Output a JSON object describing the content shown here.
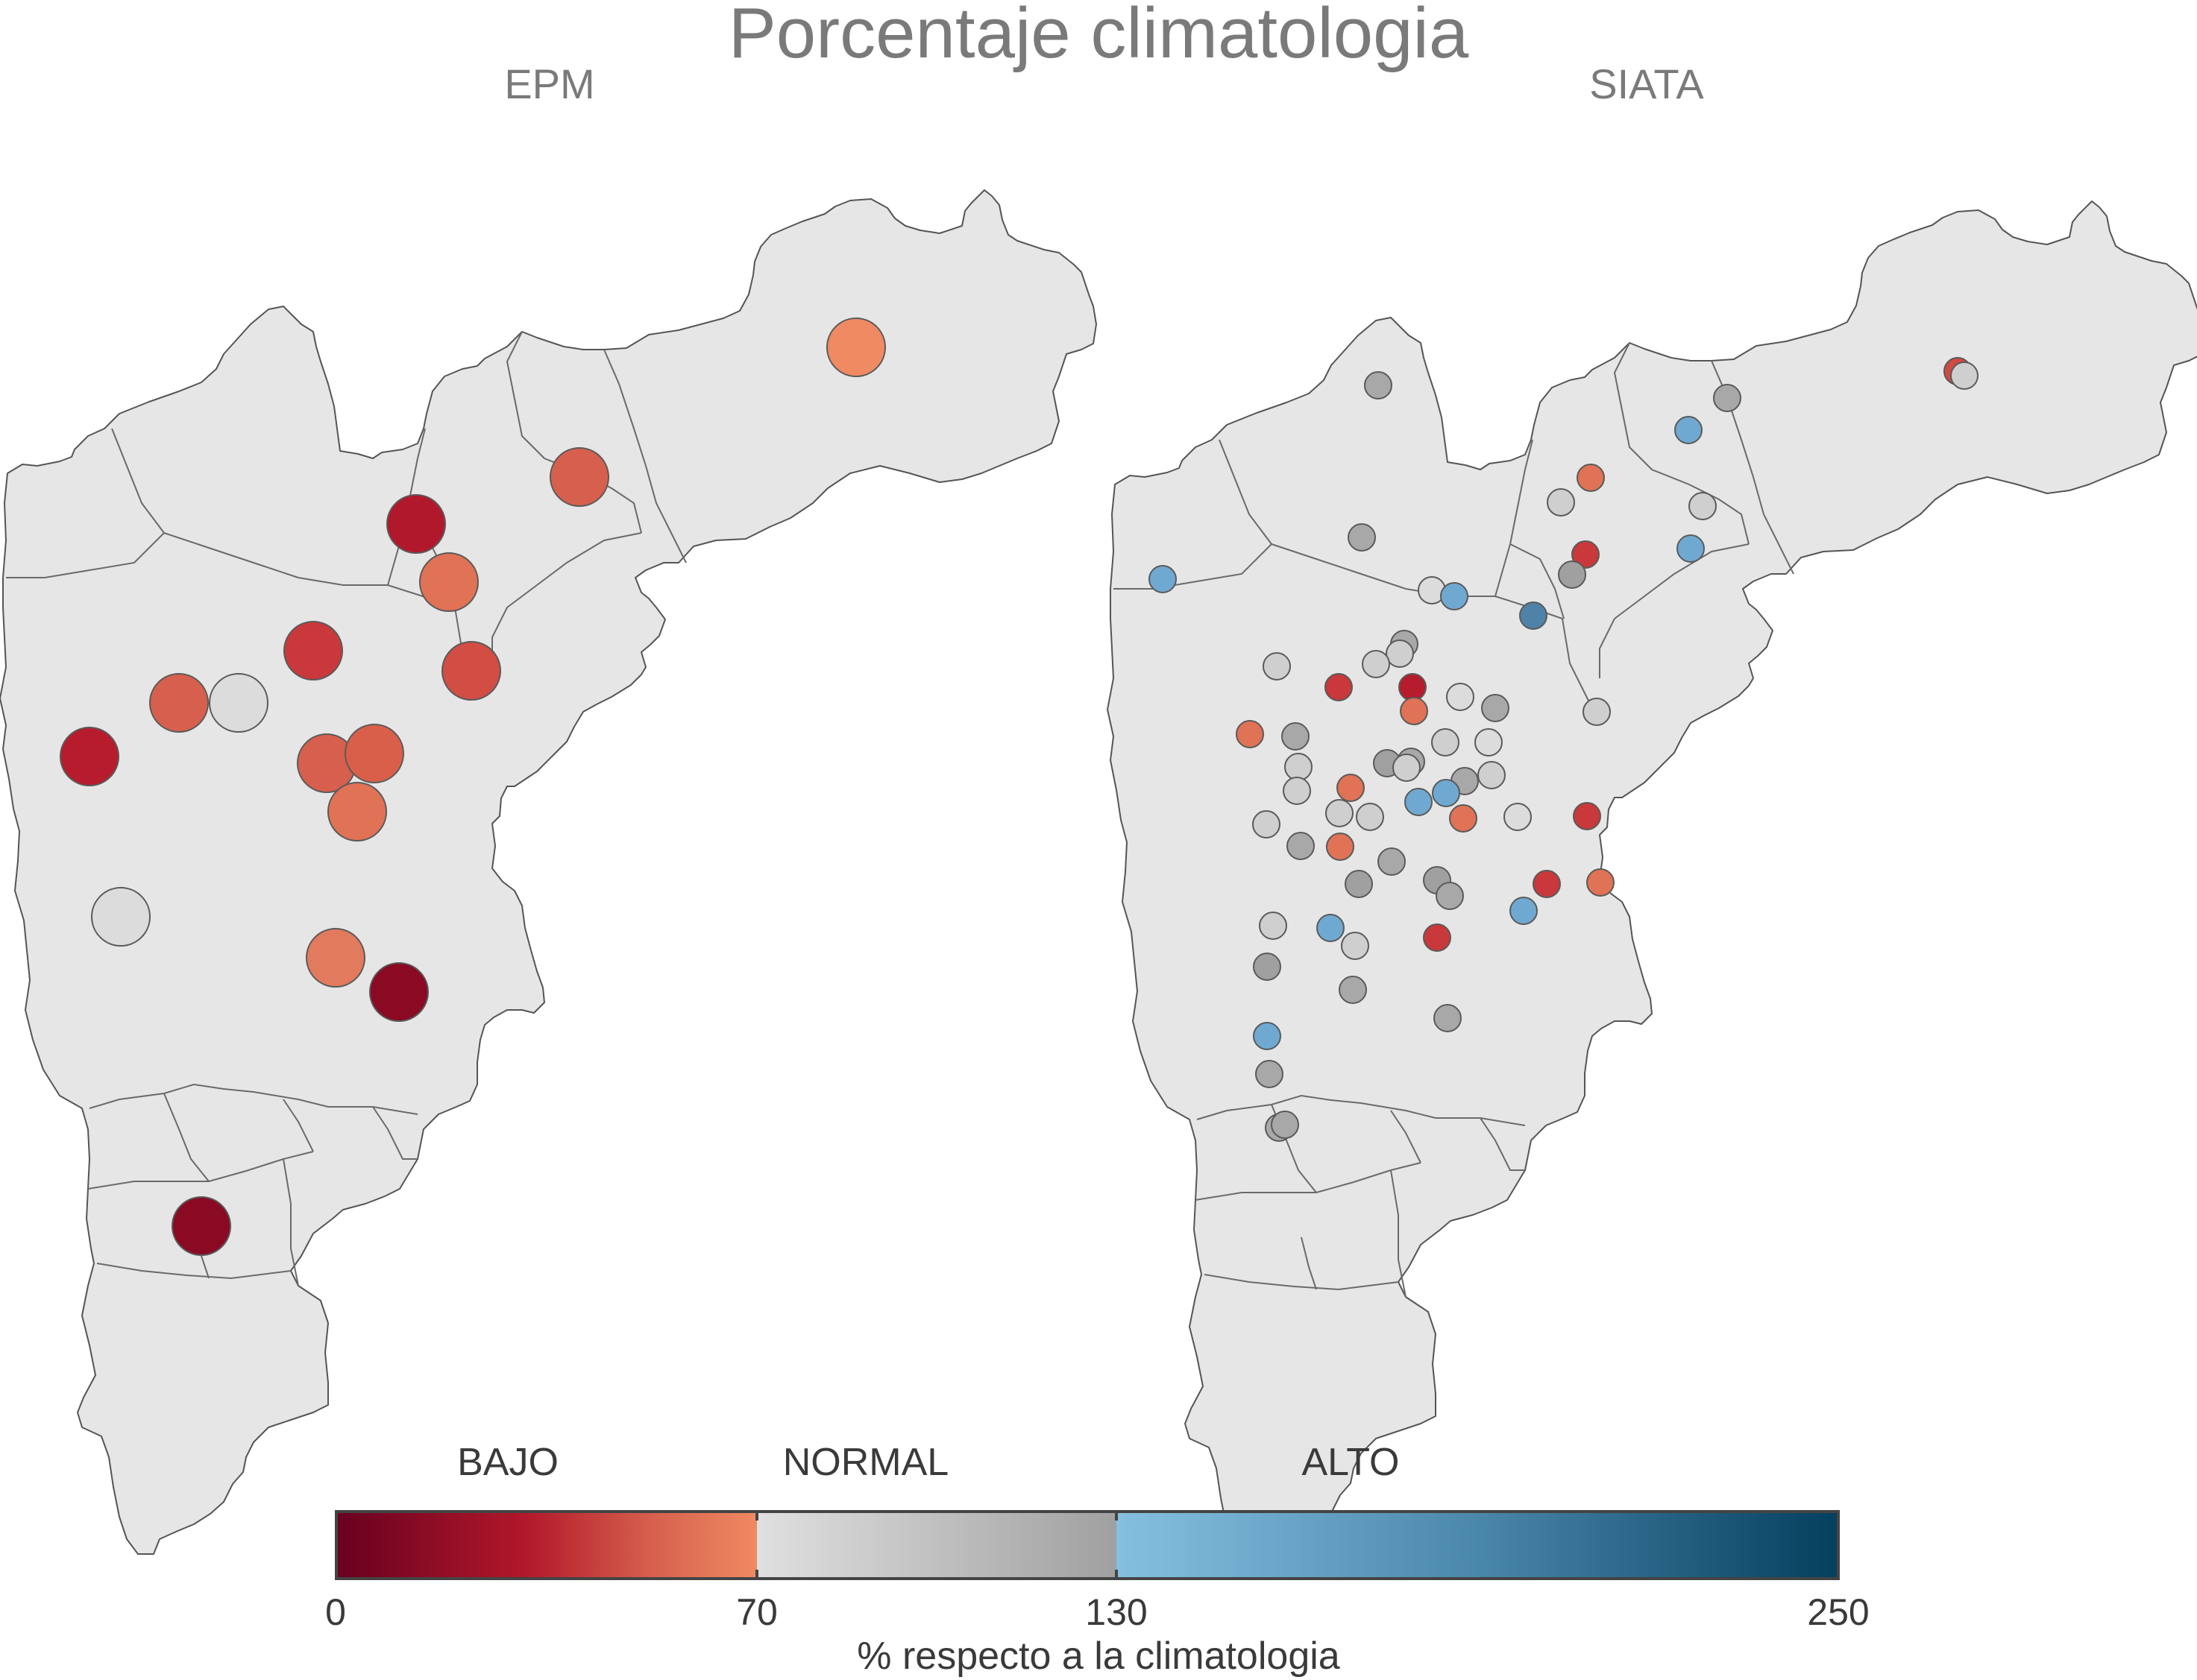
{
  "title": "Porcentaje climatologia",
  "panels": [
    {
      "name": "EPM"
    },
    {
      "name": "SIATA"
    }
  ],
  "legend": {
    "categories": [
      "BAJO",
      "NORMAL",
      "ALTO"
    ],
    "ticks": [
      "0",
      "70",
      "130",
      "250"
    ],
    "label": "% respecto a la climatologia"
  },
  "colors": {
    "background_region": "#e6e6e6",
    "bajo_dark": "#67001f",
    "bajo_mid": "#b2182b",
    "bajo_light": "#ef8a62",
    "normal_light": "#e0e0e0",
    "normal_dark": "#a0a0a0",
    "alto_light": "#85c0e0",
    "alto_dark": "#053f5e"
  }
}
